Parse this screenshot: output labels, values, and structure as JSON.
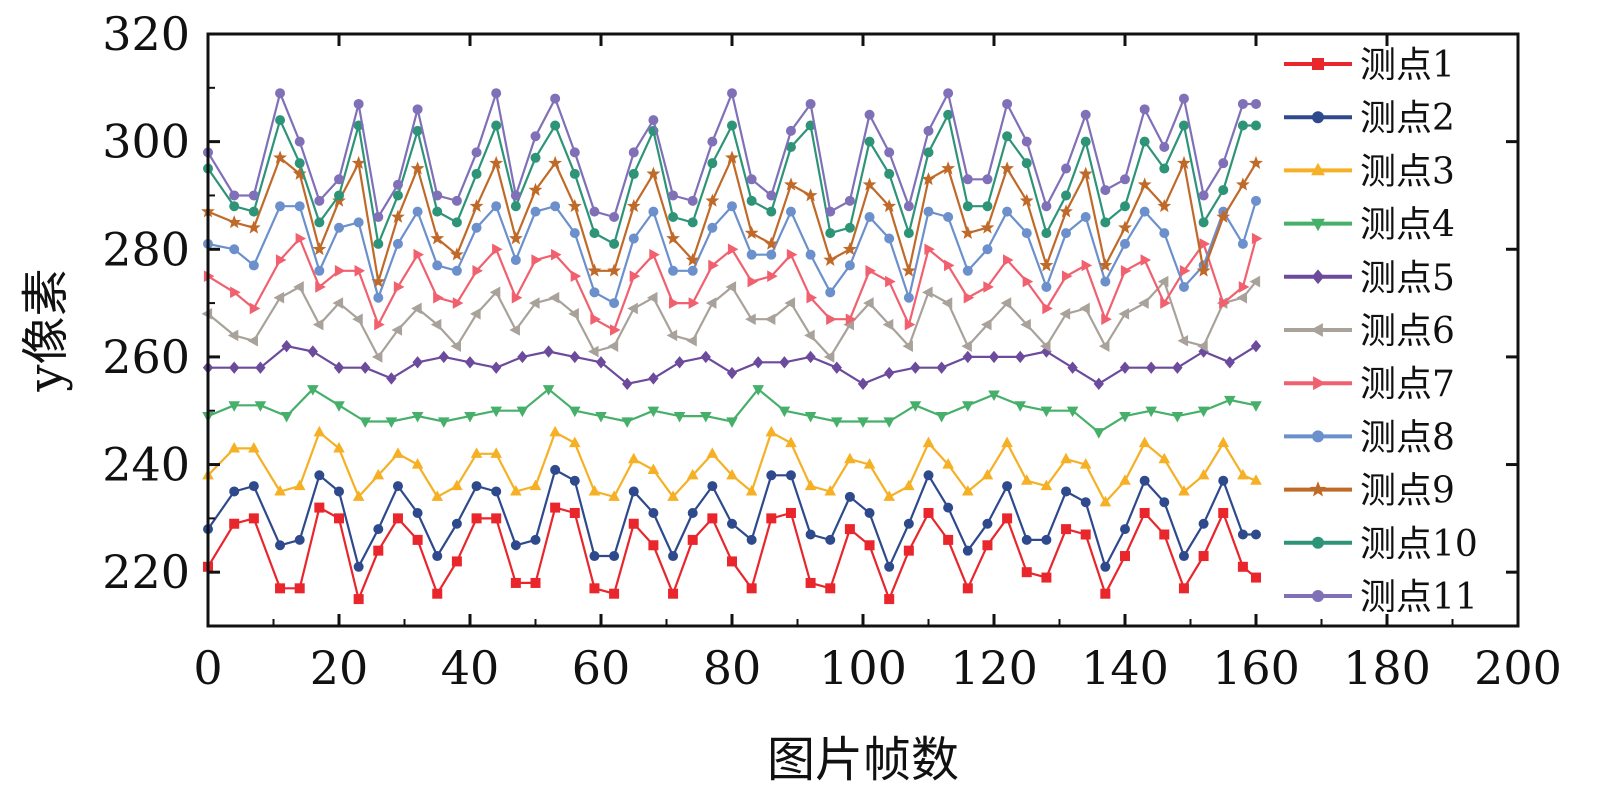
{
  "chart_data": {
    "type": "line",
    "title": "",
    "xlabel": "图片帧数",
    "ylabel": "y像素",
    "xlim": [
      0,
      200
    ],
    "ylim": [
      210,
      320
    ],
    "xticks": [
      "0",
      "20",
      "40",
      "60",
      "80",
      "100",
      "120",
      "140",
      "160",
      "180",
      "200"
    ],
    "yticks": [
      "220",
      "240",
      "260",
      "280",
      "300",
      "320"
    ],
    "grid": false,
    "legend_position": "right",
    "series": [
      {
        "name": "测点1",
        "color": "#e8262c",
        "marker": "square",
        "x": [
          0,
          4,
          7,
          11,
          14,
          17,
          20,
          23,
          26,
          29,
          32,
          35,
          38,
          41,
          44,
          47,
          50,
          53,
          56,
          59,
          62,
          65,
          68,
          71,
          74,
          77,
          80,
          83,
          86,
          89,
          92,
          95,
          98,
          101,
          104,
          107,
          110,
          113,
          116,
          119,
          122,
          125,
          128,
          131,
          134,
          137,
          140,
          143,
          146,
          149,
          152,
          155,
          158,
          160
        ],
        "y": [
          221,
          229,
          230,
          217,
          217,
          232,
          230,
          215,
          224,
          230,
          226,
          216,
          222,
          230,
          230,
          218,
          218,
          232,
          231,
          217,
          216,
          229,
          225,
          216,
          226,
          230,
          222,
          217,
          230,
          231,
          218,
          217,
          228,
          225,
          215,
          224,
          231,
          226,
          217,
          225,
          230,
          220,
          219,
          228,
          227,
          216,
          223,
          231,
          227,
          217,
          223,
          231,
          221,
          219
        ]
      },
      {
        "name": "测点2",
        "color": "#2e4a8c",
        "marker": "circle",
        "x": [
          0,
          4,
          7,
          11,
          14,
          17,
          20,
          23,
          26,
          29,
          32,
          35,
          38,
          41,
          44,
          47,
          50,
          53,
          56,
          59,
          62,
          65,
          68,
          71,
          74,
          77,
          80,
          83,
          86,
          89,
          92,
          95,
          98,
          101,
          104,
          107,
          110,
          113,
          116,
          119,
          122,
          125,
          128,
          131,
          134,
          137,
          140,
          143,
          146,
          149,
          152,
          155,
          158,
          160
        ],
        "y": [
          228,
          235,
          236,
          225,
          226,
          238,
          235,
          221,
          228,
          236,
          231,
          223,
          229,
          236,
          235,
          225,
          226,
          239,
          237,
          223,
          223,
          235,
          231,
          223,
          231,
          236,
          229,
          226,
          238,
          238,
          227,
          226,
          234,
          231,
          221,
          229,
          238,
          232,
          224,
          229,
          236,
          226,
          226,
          235,
          233,
          221,
          228,
          237,
          233,
          223,
          229,
          237,
          227,
          227
        ]
      },
      {
        "name": "测点3",
        "color": "#f5b025",
        "marker": "triangle-up",
        "x": [
          0,
          4,
          7,
          11,
          14,
          17,
          20,
          23,
          26,
          29,
          32,
          35,
          38,
          41,
          44,
          47,
          50,
          53,
          56,
          59,
          62,
          65,
          68,
          71,
          74,
          77,
          80,
          83,
          86,
          89,
          92,
          95,
          98,
          101,
          104,
          107,
          110,
          113,
          116,
          119,
          122,
          125,
          128,
          131,
          134,
          137,
          140,
          143,
          146,
          149,
          152,
          155,
          158,
          160
        ],
        "y": [
          238,
          243,
          243,
          235,
          236,
          246,
          243,
          234,
          238,
          242,
          240,
          234,
          236,
          242,
          242,
          235,
          236,
          246,
          244,
          235,
          234,
          241,
          239,
          234,
          238,
          242,
          238,
          235,
          246,
          244,
          236,
          235,
          241,
          240,
          234,
          236,
          244,
          240,
          235,
          238,
          244,
          237,
          236,
          241,
          240,
          233,
          237,
          244,
          241,
          235,
          238,
          244,
          238,
          237
        ]
      },
      {
        "name": "测点4",
        "color": "#46b06a",
        "marker": "triangle-down",
        "x": [
          0,
          4,
          8,
          12,
          16,
          20,
          24,
          28,
          32,
          36,
          40,
          44,
          48,
          52,
          56,
          60,
          64,
          68,
          72,
          76,
          80,
          84,
          88,
          92,
          96,
          100,
          104,
          108,
          112,
          116,
          120,
          124,
          128,
          132,
          136,
          140,
          144,
          148,
          152,
          156,
          160
        ],
        "y": [
          249,
          251,
          251,
          249,
          254,
          251,
          248,
          248,
          249,
          248,
          249,
          250,
          250,
          254,
          250,
          249,
          248,
          250,
          249,
          249,
          248,
          254,
          250,
          249,
          248,
          248,
          248,
          251,
          249,
          251,
          253,
          251,
          250,
          250,
          246,
          249,
          250,
          249,
          250,
          252,
          251
        ]
      },
      {
        "name": "测点5",
        "color": "#6c4a9c",
        "marker": "diamond",
        "x": [
          0,
          4,
          8,
          12,
          16,
          20,
          24,
          28,
          32,
          36,
          40,
          44,
          48,
          52,
          56,
          60,
          64,
          68,
          72,
          76,
          80,
          84,
          88,
          92,
          96,
          100,
          104,
          108,
          112,
          116,
          120,
          124,
          128,
          132,
          136,
          140,
          144,
          148,
          152,
          156,
          160
        ],
        "y": [
          258,
          258,
          258,
          262,
          261,
          258,
          258,
          256,
          259,
          260,
          259,
          258,
          260,
          261,
          260,
          259,
          255,
          256,
          259,
          260,
          257,
          259,
          259,
          260,
          258,
          255,
          257,
          258,
          258,
          260,
          260,
          260,
          261,
          258,
          255,
          258,
          258,
          258,
          261,
          259,
          262
        ]
      },
      {
        "name": "测点6",
        "color": "#a8a29a",
        "marker": "triangle-left",
        "x": [
          0,
          4,
          7,
          11,
          14,
          17,
          20,
          23,
          26,
          29,
          32,
          35,
          38,
          41,
          44,
          47,
          50,
          53,
          56,
          59,
          62,
          65,
          68,
          71,
          74,
          77,
          80,
          83,
          86,
          89,
          92,
          95,
          98,
          101,
          104,
          107,
          110,
          113,
          116,
          119,
          122,
          125,
          128,
          131,
          134,
          137,
          140,
          143,
          146,
          149,
          152,
          155,
          158,
          160
        ],
        "y": [
          268,
          264,
          263,
          271,
          273,
          266,
          270,
          267,
          260,
          265,
          269,
          266,
          262,
          268,
          272,
          265,
          270,
          271,
          268,
          261,
          262,
          269,
          271,
          264,
          263,
          270,
          273,
          267,
          267,
          270,
          264,
          260,
          266,
          270,
          266,
          262,
          272,
          270,
          262,
          266,
          270,
          266,
          262,
          268,
          269,
          262,
          268,
          270,
          274,
          263,
          262,
          270,
          271,
          274
        ]
      },
      {
        "name": "测点7",
        "color": "#f0606e",
        "marker": "triangle-right",
        "x": [
          0,
          4,
          7,
          11,
          14,
          17,
          20,
          23,
          26,
          29,
          32,
          35,
          38,
          41,
          44,
          47,
          50,
          53,
          56,
          59,
          62,
          65,
          68,
          71,
          74,
          77,
          80,
          83,
          86,
          89,
          92,
          95,
          98,
          101,
          104,
          107,
          110,
          113,
          116,
          119,
          122,
          125,
          128,
          131,
          134,
          137,
          140,
          143,
          146,
          149,
          152,
          155,
          158,
          160
        ],
        "y": [
          275,
          272,
          269,
          278,
          282,
          273,
          276,
          276,
          266,
          273,
          279,
          271,
          270,
          276,
          280,
          271,
          278,
          279,
          275,
          267,
          265,
          275,
          279,
          270,
          270,
          277,
          280,
          274,
          275,
          279,
          271,
          267,
          267,
          276,
          274,
          266,
          280,
          277,
          271,
          273,
          278,
          274,
          269,
          275,
          277,
          267,
          276,
          278,
          270,
          276,
          281,
          270,
          273,
          282
        ]
      },
      {
        "name": "测点8",
        "color": "#6b90cc",
        "marker": "circle",
        "x": [
          0,
          4,
          7,
          11,
          14,
          17,
          20,
          23,
          26,
          29,
          32,
          35,
          38,
          41,
          44,
          47,
          50,
          53,
          56,
          59,
          62,
          65,
          68,
          71,
          74,
          77,
          80,
          83,
          86,
          89,
          92,
          95,
          98,
          101,
          104,
          107,
          110,
          113,
          116,
          119,
          122,
          125,
          128,
          131,
          134,
          137,
          140,
          143,
          146,
          149,
          152,
          155,
          158,
          160
        ],
        "y": [
          281,
          280,
          277,
          288,
          288,
          276,
          284,
          285,
          271,
          281,
          287,
          277,
          276,
          284,
          288,
          278,
          287,
          288,
          283,
          272,
          270,
          282,
          287,
          276,
          276,
          284,
          288,
          279,
          279,
          287,
          279,
          272,
          277,
          286,
          282,
          271,
          287,
          286,
          276,
          280,
          287,
          283,
          273,
          283,
          286,
          274,
          281,
          287,
          283,
          273,
          277,
          287,
          281,
          289
        ]
      },
      {
        "name": "测点9",
        "color": "#c06a2a",
        "marker": "star",
        "x": [
          0,
          4,
          7,
          11,
          14,
          17,
          20,
          23,
          26,
          29,
          32,
          35,
          38,
          41,
          44,
          47,
          50,
          53,
          56,
          59,
          62,
          65,
          68,
          71,
          74,
          77,
          80,
          83,
          86,
          89,
          92,
          95,
          98,
          101,
          104,
          107,
          110,
          113,
          116,
          119,
          122,
          125,
          128,
          131,
          134,
          137,
          140,
          143,
          146,
          149,
          152,
          155,
          158,
          160
        ],
        "y": [
          287,
          285,
          284,
          297,
          294,
          280,
          289,
          296,
          274,
          286,
          295,
          282,
          279,
          288,
          296,
          282,
          291,
          296,
          288,
          276,
          276,
          288,
          294,
          282,
          278,
          289,
          297,
          283,
          281,
          292,
          290,
          278,
          280,
          292,
          288,
          276,
          293,
          295,
          283,
          284,
          295,
          289,
          277,
          287,
          294,
          277,
          284,
          292,
          288,
          296,
          276,
          286,
          292,
          296
        ]
      },
      {
        "name": "测点10",
        "color": "#2e9478",
        "marker": "circle",
        "x": [
          0,
          4,
          7,
          11,
          14,
          17,
          20,
          23,
          26,
          29,
          32,
          35,
          38,
          41,
          44,
          47,
          50,
          53,
          56,
          59,
          62,
          65,
          68,
          71,
          74,
          77,
          80,
          83,
          86,
          89,
          92,
          95,
          98,
          101,
          104,
          107,
          110,
          113,
          116,
          119,
          122,
          125,
          128,
          131,
          134,
          137,
          140,
          143,
          146,
          149,
          152,
          155,
          158,
          160
        ],
        "y": [
          295,
          288,
          287,
          304,
          296,
          285,
          290,
          303,
          281,
          290,
          302,
          287,
          285,
          294,
          303,
          288,
          297,
          303,
          294,
          283,
          281,
          294,
          302,
          286,
          285,
          296,
          303,
          289,
          287,
          299,
          303,
          283,
          284,
          300,
          294,
          283,
          298,
          305,
          288,
          288,
          301,
          296,
          283,
          290,
          300,
          285,
          288,
          300,
          295,
          303,
          285,
          291,
          303,
          303
        ]
      },
      {
        "name": "测点11",
        "color": "#8070b8",
        "marker": "circle",
        "x": [
          0,
          4,
          7,
          11,
          14,
          17,
          20,
          23,
          26,
          29,
          32,
          35,
          38,
          41,
          44,
          47,
          50,
          53,
          56,
          59,
          62,
          65,
          68,
          71,
          74,
          77,
          80,
          83,
          86,
          89,
          92,
          95,
          98,
          101,
          104,
          107,
          110,
          113,
          116,
          119,
          122,
          125,
          128,
          131,
          134,
          137,
          140,
          143,
          146,
          149,
          152,
          155,
          158,
          160
        ],
        "y": [
          298,
          290,
          290,
          309,
          300,
          289,
          293,
          307,
          286,
          292,
          306,
          290,
          289,
          298,
          309,
          290,
          301,
          308,
          298,
          287,
          286,
          298,
          304,
          290,
          289,
          300,
          309,
          293,
          290,
          302,
          307,
          287,
          289,
          305,
          298,
          288,
          302,
          309,
          293,
          293,
          307,
          300,
          288,
          295,
          305,
          291,
          293,
          306,
          299,
          308,
          290,
          296,
          307,
          307
        ]
      }
    ]
  }
}
